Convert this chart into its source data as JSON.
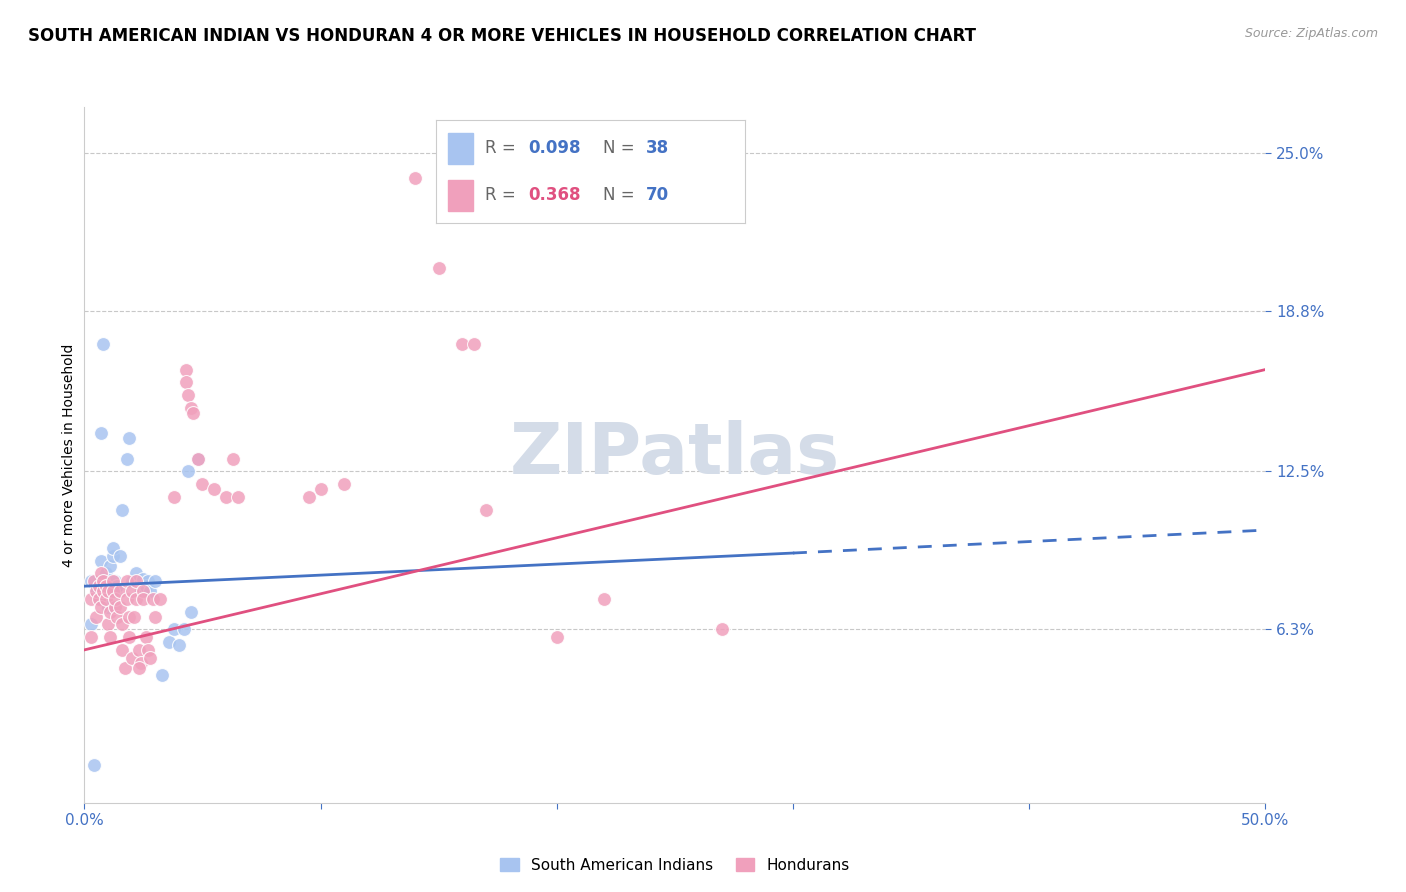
{
  "title": "SOUTH AMERICAN INDIAN VS HONDURAN 4 OR MORE VEHICLES IN HOUSEHOLD CORRELATION CHART",
  "source": "Source: ZipAtlas.com",
  "ylabel": "4 or more Vehicles in Household",
  "xlim": [
    0.0,
    0.5
  ],
  "ylim": [
    -0.005,
    0.268
  ],
  "ytick_positions": [
    0.063,
    0.125,
    0.188,
    0.25
  ],
  "ytick_labels": [
    "6.3%",
    "12.5%",
    "18.8%",
    "25.0%"
  ],
  "xtick_positions": [
    0.0,
    0.1,
    0.2,
    0.3,
    0.4,
    0.5
  ],
  "xtick_labels": [
    "0.0%",
    "",
    "",
    "",
    "",
    "50.0%"
  ],
  "legend_entries": [
    {
      "label": "South American Indians",
      "color": "#a8c4f0",
      "R": "0.098",
      "N": "38"
    },
    {
      "label": "Hondurans",
      "color": "#f0a0bc",
      "R": "0.368",
      "N": "70"
    }
  ],
  "blue_scatter": [
    [
      0.003,
      0.082
    ],
    [
      0.005,
      0.078
    ],
    [
      0.006,
      0.075
    ],
    [
      0.007,
      0.09
    ],
    [
      0.008,
      0.08
    ],
    [
      0.009,
      0.085
    ],
    [
      0.01,
      0.072
    ],
    [
      0.01,
      0.078
    ],
    [
      0.011,
      0.088
    ],
    [
      0.012,
      0.092
    ],
    [
      0.012,
      0.095
    ],
    [
      0.013,
      0.078
    ],
    [
      0.013,
      0.082
    ],
    [
      0.014,
      0.08
    ],
    [
      0.015,
      0.092
    ],
    [
      0.016,
      0.11
    ],
    [
      0.018,
      0.13
    ],
    [
      0.019,
      0.138
    ],
    [
      0.02,
      0.082
    ],
    [
      0.022,
      0.085
    ],
    [
      0.024,
      0.078
    ],
    [
      0.025,
      0.083
    ],
    [
      0.026,
      0.08
    ],
    [
      0.027,
      0.082
    ],
    [
      0.028,
      0.078
    ],
    [
      0.03,
      0.082
    ],
    [
      0.033,
      0.045
    ],
    [
      0.036,
      0.058
    ],
    [
      0.038,
      0.063
    ],
    [
      0.04,
      0.057
    ],
    [
      0.042,
      0.063
    ],
    [
      0.045,
      0.07
    ],
    [
      0.008,
      0.175
    ],
    [
      0.007,
      0.14
    ],
    [
      0.004,
      0.01
    ],
    [
      0.044,
      0.125
    ],
    [
      0.048,
      0.13
    ],
    [
      0.003,
      0.065
    ]
  ],
  "pink_scatter": [
    [
      0.003,
      0.075
    ],
    [
      0.004,
      0.082
    ],
    [
      0.005,
      0.078
    ],
    [
      0.005,
      0.068
    ],
    [
      0.006,
      0.08
    ],
    [
      0.006,
      0.075
    ],
    [
      0.007,
      0.085
    ],
    [
      0.007,
      0.072
    ],
    [
      0.008,
      0.082
    ],
    [
      0.008,
      0.078
    ],
    [
      0.009,
      0.075
    ],
    [
      0.009,
      0.08
    ],
    [
      0.01,
      0.065
    ],
    [
      0.01,
      0.078
    ],
    [
      0.011,
      0.07
    ],
    [
      0.011,
      0.06
    ],
    [
      0.012,
      0.082
    ],
    [
      0.012,
      0.078
    ],
    [
      0.013,
      0.072
    ],
    [
      0.013,
      0.075
    ],
    [
      0.014,
      0.068
    ],
    [
      0.015,
      0.078
    ],
    [
      0.015,
      0.072
    ],
    [
      0.016,
      0.065
    ],
    [
      0.016,
      0.055
    ],
    [
      0.017,
      0.048
    ],
    [
      0.018,
      0.082
    ],
    [
      0.018,
      0.075
    ],
    [
      0.019,
      0.068
    ],
    [
      0.019,
      0.06
    ],
    [
      0.02,
      0.052
    ],
    [
      0.02,
      0.078
    ],
    [
      0.021,
      0.068
    ],
    [
      0.022,
      0.075
    ],
    [
      0.022,
      0.082
    ],
    [
      0.023,
      0.055
    ],
    [
      0.024,
      0.05
    ],
    [
      0.025,
      0.078
    ],
    [
      0.025,
      0.075
    ],
    [
      0.026,
      0.06
    ],
    [
      0.027,
      0.055
    ],
    [
      0.028,
      0.052
    ],
    [
      0.029,
      0.075
    ],
    [
      0.03,
      0.068
    ],
    [
      0.032,
      0.075
    ],
    [
      0.038,
      0.115
    ],
    [
      0.043,
      0.165
    ],
    [
      0.043,
      0.16
    ],
    [
      0.044,
      0.155
    ],
    [
      0.045,
      0.15
    ],
    [
      0.046,
      0.148
    ],
    [
      0.048,
      0.13
    ],
    [
      0.05,
      0.12
    ],
    [
      0.055,
      0.118
    ],
    [
      0.06,
      0.115
    ],
    [
      0.063,
      0.13
    ],
    [
      0.065,
      0.115
    ],
    [
      0.095,
      0.115
    ],
    [
      0.1,
      0.118
    ],
    [
      0.11,
      0.12
    ],
    [
      0.14,
      0.24
    ],
    [
      0.15,
      0.205
    ],
    [
      0.16,
      0.175
    ],
    [
      0.165,
      0.175
    ],
    [
      0.17,
      0.11
    ],
    [
      0.2,
      0.06
    ],
    [
      0.22,
      0.075
    ],
    [
      0.27,
      0.063
    ],
    [
      0.003,
      0.06
    ],
    [
      0.023,
      0.048
    ]
  ],
  "blue_line_solid": {
    "x0": 0.0,
    "y0": 0.08,
    "x1": 0.3,
    "y1": 0.093
  },
  "blue_line_dashed": {
    "x0": 0.3,
    "y0": 0.093,
    "x1": 0.5,
    "y1": 0.102
  },
  "pink_line": {
    "x0": 0.0,
    "y0": 0.055,
    "x1": 0.5,
    "y1": 0.165
  },
  "scatter_color_blue": "#a8c4f0",
  "scatter_color_pink": "#f0a0bc",
  "line_color_blue": "#4472c4",
  "line_color_pink": "#e05080",
  "bg_color": "#ffffff",
  "grid_color": "#c8c8c8",
  "title_fontsize": 12,
  "label_fontsize": 10,
  "tick_fontsize": 11,
  "watermark_color": "#d4dce8"
}
